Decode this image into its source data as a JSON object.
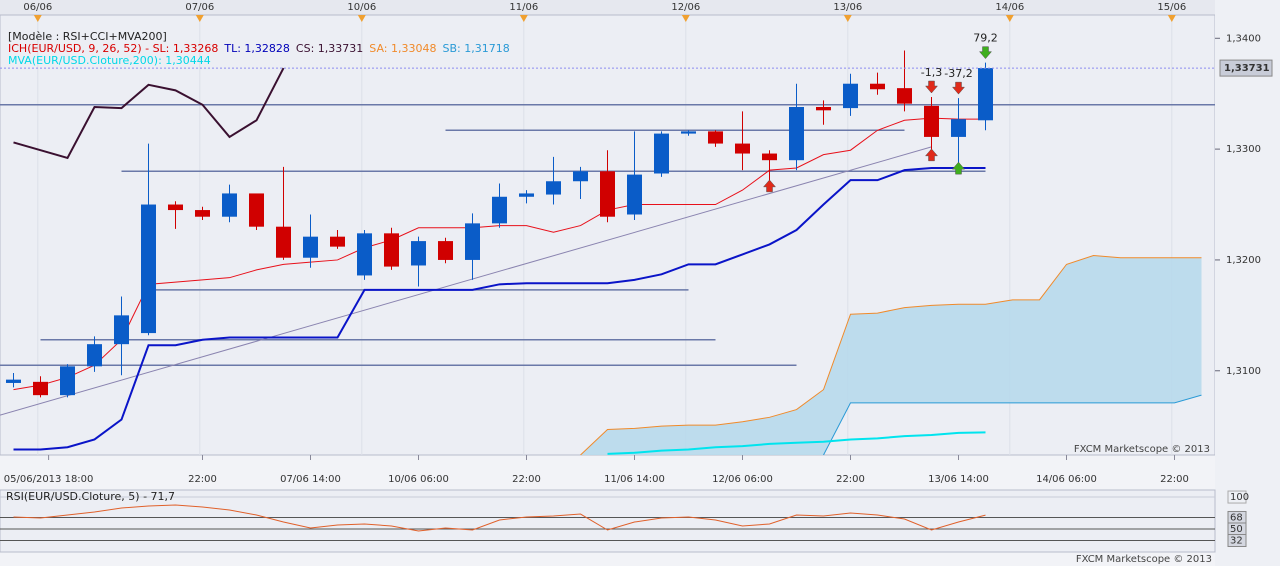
{
  "chart_data": {
    "type": "candlestick",
    "model_label": "[Modèle : RSI+CCI+MVA200]",
    "legend": [
      {
        "text": "ICH(EUR/USD, 9, 26, 52) -  SL: 1,33268",
        "color": "#d80000"
      },
      {
        "text": "TL: 1,32828",
        "color": "#0000b8"
      },
      {
        "text": "CS: 1,33731",
        "color": "#3a1030"
      },
      {
        "text": "SA: 1,33048",
        "color": "#f08a2a"
      },
      {
        "text": "SB: 1,31718",
        "color": "#2a9ad6"
      }
    ],
    "legend2": {
      "text": "MVA(EUR/USD.Cloture,200): 1,30444",
      "color": "#00d8e8"
    },
    "x": [
      0,
      1,
      2,
      3,
      4,
      5,
      6,
      7,
      8,
      9,
      10,
      11,
      12,
      13,
      14,
      15,
      16,
      17,
      18,
      19,
      20,
      21,
      22,
      23,
      24,
      25,
      26,
      27,
      28,
      29,
      30,
      31,
      32,
      33,
      34,
      35,
      36,
      37,
      38,
      39,
      40,
      41,
      42,
      43,
      44
    ],
    "xlim": [
      -0.5,
      44.5
    ],
    "ylim": [
      1.3024,
      1.3421
    ],
    "yticks": [
      {
        "value": 1.34,
        "label": "1,3400"
      },
      {
        "value": 1.33,
        "label": "1,3300"
      },
      {
        "value": 1.32,
        "label": "1,3200"
      },
      {
        "value": 1.31,
        "label": "1,3100"
      }
    ],
    "top_ticks": [
      {
        "value": 0.9,
        "label": "06/06"
      },
      {
        "value": 6.9,
        "label": "07/06"
      },
      {
        "value": 12.9,
        "label": "10/06"
      },
      {
        "value": 18.9,
        "label": "11/06"
      },
      {
        "value": 24.9,
        "label": "12/06"
      },
      {
        "value": 30.9,
        "label": "13/06"
      },
      {
        "value": 36.9,
        "label": "14/06"
      },
      {
        "value": 42.9,
        "label": "15/06"
      }
    ],
    "xticks": [
      {
        "value": 1.3,
        "label": "05/06/2013 18:00"
      },
      {
        "value": 7,
        "label": "22:00"
      },
      {
        "value": 11,
        "label": "07/06 14:00"
      },
      {
        "value": 15,
        "label": "10/06 06:00"
      },
      {
        "value": 19,
        "label": "22:00"
      },
      {
        "value": 23,
        "label": "11/06 14:00"
      },
      {
        "value": 27,
        "label": "12/06 06:00"
      },
      {
        "value": 31,
        "label": "22:00"
      },
      {
        "value": 35,
        "label": "13/06 14:00"
      },
      {
        "value": 39,
        "label": "14/06 06:00"
      },
      {
        "value": 43,
        "label": "22:00"
      }
    ],
    "up_color": "#0a5cc8",
    "down_color": "#d00000",
    "open": [
      1.3089,
      1.309,
      1.3078,
      1.3104,
      1.3124,
      1.3134,
      1.325,
      1.3245,
      1.3239,
      1.326,
      1.323,
      1.3202,
      1.3221,
      1.3186,
      1.3224,
      1.3195,
      1.3217,
      1.32,
      1.3233,
      1.3257,
      1.3259,
      1.3271,
      1.328,
      1.3241,
      1.3278,
      1.3314,
      1.3316,
      1.3305,
      1.3296,
      1.329,
      1.3338,
      1.3337,
      1.3359,
      1.3355,
      1.3339,
      1.3311,
      1.3326,
      null,
      null,
      null,
      null,
      null,
      null,
      null,
      null
    ],
    "high": [
      1.3098,
      1.3095,
      1.3106,
      1.3131,
      1.3167,
      1.3305,
      1.3253,
      1.3248,
      1.3268,
      1.326,
      1.3284,
      1.3241,
      1.3227,
      1.3227,
      1.3229,
      1.3221,
      1.322,
      1.3242,
      1.3269,
      1.3263,
      1.3293,
      1.3284,
      1.3299,
      1.3316,
      1.3316,
      1.3317,
      1.3317,
      1.3334,
      1.3299,
      1.3359,
      1.3344,
      1.3368,
      1.3369,
      1.3389,
      1.3347,
      1.3346,
      1.3378,
      null,
      null,
      null,
      null,
      null,
      null,
      null,
      null
    ],
    "low": [
      1.3085,
      1.3076,
      1.3076,
      1.3099,
      1.3096,
      1.3132,
      1.3228,
      1.3236,
      1.3234,
      1.3227,
      1.32,
      1.3193,
      1.321,
      1.3182,
      1.3191,
      1.3176,
      1.3197,
      1.3182,
      1.3229,
      1.3251,
      1.325,
      1.3255,
      1.3234,
      1.3236,
      1.3275,
      1.3312,
      1.3302,
      1.3281,
      1.3265,
      1.3281,
      1.3322,
      1.333,
      1.3349,
      1.3334,
      1.3293,
      1.3281,
      1.3317,
      null,
      null,
      null,
      null,
      null,
      null,
      null,
      null
    ],
    "close": [
      1.3092,
      1.3078,
      1.3104,
      1.3124,
      1.315,
      1.325,
      1.3245,
      1.3239,
      1.326,
      1.323,
      1.3202,
      1.3221,
      1.3212,
      1.3224,
      1.3194,
      1.3217,
      1.32,
      1.3233,
      1.3257,
      1.326,
      1.3271,
      1.328,
      1.3239,
      1.3277,
      1.3314,
      1.3316,
      1.3305,
      1.3296,
      1.329,
      1.3338,
      1.3335,
      1.3359,
      1.3354,
      1.3341,
      1.3311,
      1.3327,
      1.33731,
      null,
      null,
      null,
      null,
      null,
      null,
      null,
      null
    ],
    "cloud_color": "#b8d9ec",
    "series": [
      {
        "color": "#f08a2a",
        "width": 1,
        "values": [
          null,
          null,
          null,
          null,
          null,
          null,
          null,
          null,
          null,
          null,
          null,
          null,
          null,
          null,
          null,
          null,
          null,
          null,
          null,
          null,
          null,
          1.3024,
          1.3047,
          1.3048,
          1.305,
          1.3051,
          1.3051,
          1.3054,
          1.3058,
          1.3065,
          1.3083,
          1.3151,
          1.3152,
          1.3157,
          1.3159,
          1.316,
          1.316,
          1.3164,
          1.3164,
          1.3196,
          1.3204,
          1.3202,
          1.3202,
          1.3202,
          1.3202
        ]
      },
      {
        "color": "#2a9ad6",
        "width": 1,
        "values": [
          null,
          null,
          null,
          null,
          null,
          null,
          null,
          null,
          null,
          null,
          null,
          null,
          null,
          null,
          null,
          null,
          null,
          null,
          null,
          null,
          null,
          null,
          null,
          null,
          null,
          null,
          null,
          null,
          null,
          null,
          1.3024,
          1.3071,
          1.3071,
          1.3071,
          1.3071,
          1.3071,
          1.3071,
          1.3071,
          1.3071,
          1.3071,
          1.3071,
          1.3071,
          1.3071,
          1.3071,
          1.3078
        ]
      },
      {
        "color": "#00e4ee",
        "width": 2,
        "values": [
          null,
          null,
          null,
          null,
          null,
          null,
          null,
          null,
          null,
          null,
          null,
          null,
          null,
          null,
          null,
          null,
          null,
          null,
          null,
          null,
          null,
          null,
          1.3025,
          1.3026,
          1.3028,
          1.3029,
          1.3031,
          1.3032,
          1.3034,
          1.3035,
          1.3036,
          1.3038,
          1.3039,
          1.3041,
          1.3042,
          1.3044,
          1.30444,
          null,
          null,
          null,
          null,
          null,
          null,
          null,
          null
        ]
      },
      {
        "color": "#3a1030",
        "width": 2,
        "values": [
          1.3306,
          1.3299,
          1.3292,
          1.3338,
          1.3337,
          1.3358,
          1.3353,
          1.334,
          1.3311,
          1.3326,
          1.33731,
          null,
          null,
          null,
          null,
          null,
          null,
          null,
          null,
          null,
          null,
          null,
          null,
          null,
          null,
          null,
          null,
          null,
          null,
          null,
          null,
          null,
          null,
          null,
          null,
          null,
          null,
          null,
          null,
          null,
          null,
          null,
          null,
          null,
          null
        ]
      },
      {
        "color": "#e8101a",
        "width": 1,
        "values": [
          1.3083,
          1.3087,
          1.3094,
          1.3105,
          1.3128,
          1.3178,
          1.318,
          1.3182,
          1.3184,
          1.3191,
          1.3196,
          1.3198,
          1.32,
          1.3211,
          1.3218,
          1.3229,
          1.3229,
          1.3229,
          1.3231,
          1.3231,
          1.3225,
          1.3231,
          1.3245,
          1.325,
          1.325,
          1.325,
          1.325,
          1.3263,
          1.3281,
          1.3283,
          1.3295,
          1.3299,
          1.3317,
          1.3326,
          1.3328,
          1.3327,
          1.3327,
          null,
          null,
          null,
          null,
          null,
          null,
          null,
          null
        ]
      },
      {
        "color": "#0a14c8",
        "width": 2,
        "values": [
          1.3029,
          1.3029,
          1.3031,
          1.3038,
          1.3056,
          1.3123,
          1.3123,
          1.3128,
          1.313,
          1.313,
          1.313,
          1.313,
          1.313,
          1.3173,
          1.3173,
          1.3173,
          1.3173,
          1.3173,
          1.3178,
          1.3179,
          1.3179,
          1.3179,
          1.3179,
          1.3182,
          1.3187,
          1.3196,
          1.3196,
          1.3205,
          1.3214,
          1.3227,
          1.325,
          1.3272,
          1.3272,
          1.3281,
          1.3283,
          1.3283,
          1.3283,
          null,
          null,
          null,
          null,
          null,
          null,
          null,
          null
        ]
      }
    ],
    "levels_color": "#6a78a8",
    "levels": [
      {
        "value": 1.334,
        "from": -0.5,
        "to": 44.5
      },
      {
        "value": 1.3317,
        "from": 16,
        "to": 33
      },
      {
        "value": 1.328,
        "from": 4,
        "to": 36
      },
      {
        "value": 1.3173,
        "from": 5,
        "to": 25
      },
      {
        "value": 1.3128,
        "from": 1,
        "to": 26
      },
      {
        "value": 1.3105,
        "from": -0.5,
        "to": 29
      }
    ],
    "trendline": {
      "x": [
        -0.5,
        34
      ],
      "values": [
        1.306,
        1.3302
      ],
      "color": "#8a84b0"
    },
    "last_price": {
      "value": 1.33731,
      "label": "1,33731"
    },
    "signals": [
      {
        "x": 34,
        "dir": "down",
        "color": "#e02a1a",
        "label": "-1,3"
      },
      {
        "x": 35,
        "dir": "down",
        "color": "#e02a1a",
        "label": "-37,2"
      },
      {
        "x": 36,
        "dir": "down",
        "color": "#3fae1e",
        "label": "79,2"
      },
      {
        "x": 28,
        "dir": "up",
        "color": "#e02a1a"
      },
      {
        "x": 34,
        "dir": "up",
        "color": "#e02a1a"
      },
      {
        "x": 35,
        "dir": "up",
        "color": "#3fae1e"
      }
    ],
    "watermark": "FXCM Marketscope © 2013",
    "rsi": {
      "title": "RSI(EUR/USD.Cloture, 5) - 71,7",
      "color": "#e0602a",
      "ylim": [
        14,
        111
      ],
      "yticks": [
        100,
        68,
        50,
        32
      ],
      "values": [
        68.8,
        67.2,
        71.9,
        76.6,
        82.8,
        85.9,
        87.5,
        84.4,
        79.7,
        71.9,
        60.9,
        51.6,
        56.3,
        57.8,
        54.7,
        46.9,
        51.6,
        48.4,
        64.1,
        68.8,
        70.3,
        73.4,
        48.4,
        60.9,
        67.2,
        68.8,
        64.1,
        54.7,
        57.8,
        71.9,
        70.3,
        75,
        71.9,
        65.6,
        48.4,
        60.9,
        71.7,
        null,
        null,
        null,
        null,
        null,
        null,
        null,
        null
      ]
    }
  }
}
